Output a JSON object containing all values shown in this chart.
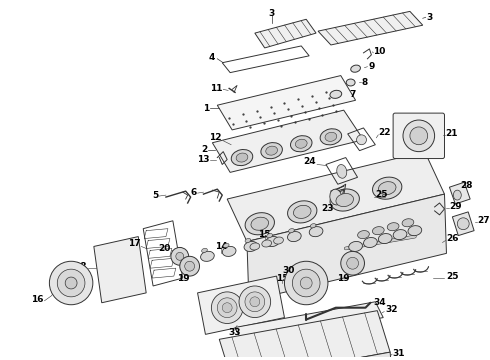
{
  "bg_color": "#ffffff",
  "line_color": "#333333",
  "label_color": "#000000",
  "figsize": [
    4.9,
    3.6
  ],
  "dpi": 100,
  "lw": 0.7,
  "anno_fs": 6.5,
  "parts_layout": "isometric_engine_exploded"
}
